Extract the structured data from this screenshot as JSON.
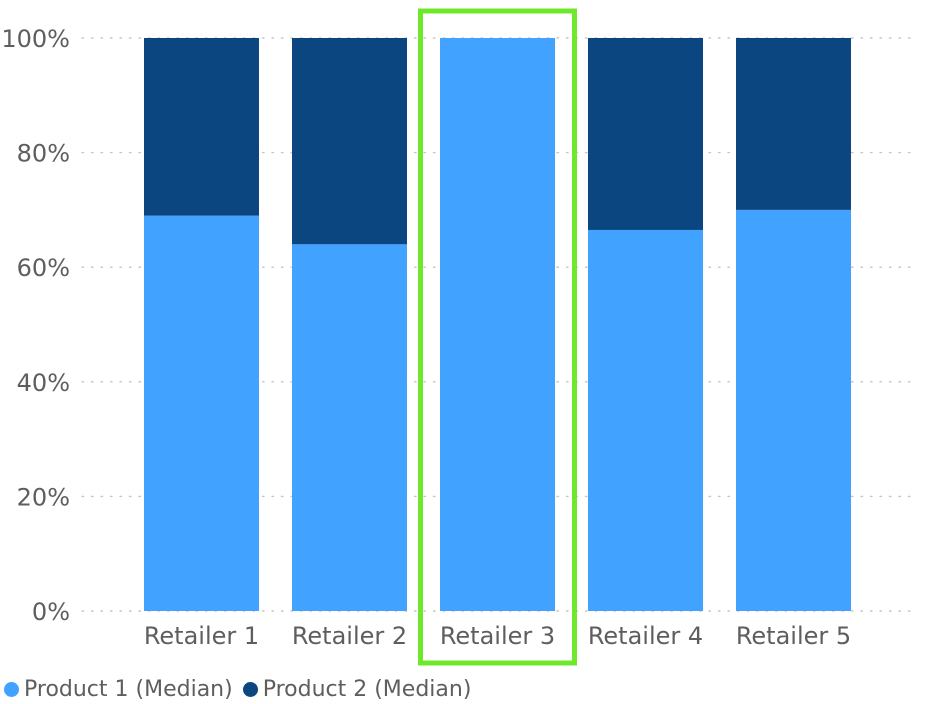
{
  "chart_data": {
    "type": "bar",
    "stacked": true,
    "percent_stacked": true,
    "categories": [
      "Retailer 1",
      "Retailer 2",
      "Retailer 3",
      "Retailer 4",
      "Retailer 5"
    ],
    "series": [
      {
        "name": "Product 1 (Median)",
        "color": "#41a3ff",
        "values": [
          69,
          64,
          100,
          66.5,
          70
        ]
      },
      {
        "name": "Product 2 (Median)",
        "color": "#0b4680",
        "values": [
          31,
          36,
          0,
          33.5,
          30
        ]
      }
    ],
    "yticks": [
      "0%",
      "20%",
      "40%",
      "60%",
      "80%",
      "100%"
    ],
    "ylim": [
      0,
      100
    ],
    "grid": "dotted",
    "legend_position": "bottom-left",
    "highlighted_category": "Retailer 3",
    "highlight_color": "#6ee82a"
  }
}
